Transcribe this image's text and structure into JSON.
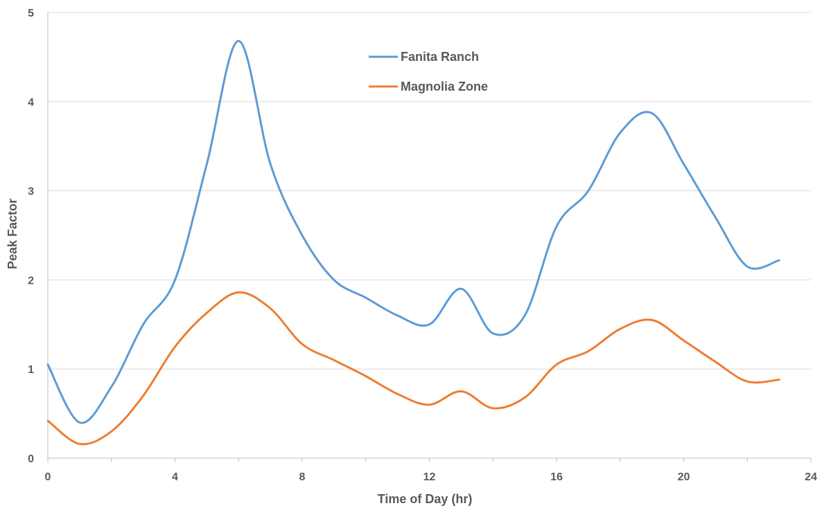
{
  "chart_data": {
    "type": "line",
    "title": "",
    "xlabel": "Time of Day (hr)",
    "ylabel": "Peak Factor",
    "xlim": [
      0,
      24
    ],
    "ylim": [
      0,
      5
    ],
    "x_ticks": [
      0,
      4,
      8,
      12,
      16,
      20,
      24
    ],
    "y_ticks": [
      0,
      1,
      2,
      3,
      4,
      5
    ],
    "grid": "horizontal",
    "legend_position": "top-center",
    "smooth": true,
    "series": [
      {
        "name": "Fanita Ranch",
        "color": "#5b9bd5",
        "x": [
          0,
          1,
          2,
          3,
          4,
          5,
          6,
          7,
          8,
          9,
          10,
          11,
          12,
          13,
          14,
          15,
          16,
          17,
          18,
          19,
          20,
          21,
          22,
          23
        ],
        "y": [
          1.05,
          0.4,
          0.8,
          1.5,
          2.0,
          3.3,
          4.68,
          3.3,
          2.5,
          2.0,
          1.8,
          1.6,
          1.5,
          1.9,
          1.4,
          1.6,
          2.6,
          3.0,
          3.65,
          3.87,
          3.3,
          2.7,
          2.15,
          2.22
        ]
      },
      {
        "name": "Magnolia Zone",
        "color": "#ed7d31",
        "x": [
          0,
          1,
          2,
          3,
          4,
          5,
          6,
          7,
          8,
          9,
          10,
          11,
          12,
          13,
          14,
          15,
          16,
          17,
          18,
          19,
          20,
          21,
          22,
          23
        ],
        "y": [
          0.42,
          0.16,
          0.3,
          0.7,
          1.25,
          1.63,
          1.86,
          1.68,
          1.28,
          1.1,
          0.92,
          0.72,
          0.6,
          0.75,
          0.56,
          0.68,
          1.05,
          1.2,
          1.45,
          1.55,
          1.32,
          1.08,
          0.86,
          0.88
        ]
      }
    ]
  }
}
